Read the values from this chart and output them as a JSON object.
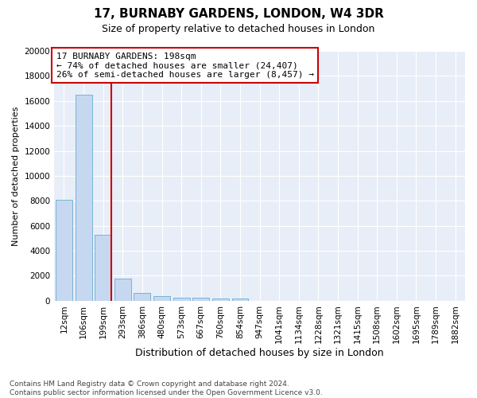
{
  "title": "17, BURNABY GARDENS, LONDON, W4 3DR",
  "subtitle": "Size of property relative to detached houses in London",
  "xlabel": "Distribution of detached houses by size in London",
  "ylabel": "Number of detached properties",
  "categories": [
    "12sqm",
    "106sqm",
    "199sqm",
    "293sqm",
    "386sqm",
    "480sqm",
    "573sqm",
    "667sqm",
    "760sqm",
    "854sqm",
    "947sqm",
    "1041sqm",
    "1134sqm",
    "1228sqm",
    "1321sqm",
    "1415sqm",
    "1508sqm",
    "1602sqm",
    "1695sqm",
    "1789sqm",
    "1882sqm"
  ],
  "values": [
    8100,
    16500,
    5300,
    1800,
    650,
    350,
    270,
    220,
    200,
    160,
    0,
    0,
    0,
    0,
    0,
    0,
    0,
    0,
    0,
    0,
    0
  ],
  "bar_color": "#c5d8f0",
  "bar_edge_color": "#6aaad4",
  "vline_x_index": 2,
  "vline_color": "#cc0000",
  "annotation_line1": "17 BURNABY GARDENS: 198sqm",
  "annotation_line2": "← 74% of detached houses are smaller (24,407)",
  "annotation_line3": "26% of semi-detached houses are larger (8,457) →",
  "annotation_box_color": "#cc0000",
  "ylim": [
    0,
    20000
  ],
  "yticks": [
    0,
    2000,
    4000,
    6000,
    8000,
    10000,
    12000,
    14000,
    16000,
    18000,
    20000
  ],
  "background_color": "#e8eef8",
  "grid_color": "#d0d8e8",
  "fig_background": "#ffffff",
  "footnote": "Contains HM Land Registry data © Crown copyright and database right 2024.\nContains public sector information licensed under the Open Government Licence v3.0.",
  "title_fontsize": 11,
  "subtitle_fontsize": 9,
  "xlabel_fontsize": 9,
  "ylabel_fontsize": 8,
  "tick_fontsize": 7.5,
  "annotation_fontsize": 8,
  "footnote_fontsize": 6.5
}
